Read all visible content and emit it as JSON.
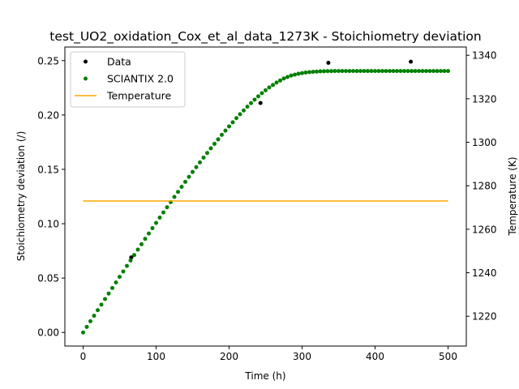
{
  "chart_data": {
    "type": "scatter",
    "title": "test_UO2_oxidation_Cox_et_al_data_1273K - Stoichiometry deviation",
    "xlabel": "Time (h)",
    "ylabel": "Stoichiometry deviation (/)",
    "y2label": "Temperature (K)",
    "xlim": [
      -25,
      525
    ],
    "ylim": [
      -0.0125,
      0.2625
    ],
    "y2lim": [
      1206.3,
      1343.8
    ],
    "xticks": [
      0,
      100,
      200,
      300,
      400,
      500
    ],
    "xtick_labels": [
      "0",
      "100",
      "200",
      "300",
      "400",
      "500"
    ],
    "yticks": [
      0.0,
      0.05,
      0.1,
      0.15,
      0.2,
      0.25
    ],
    "ytick_labels": [
      "0.00",
      "0.05",
      "0.10",
      "0.15",
      "0.20",
      "0.25"
    ],
    "y2ticks": [
      1220,
      1240,
      1260,
      1280,
      1300,
      1320,
      1340
    ],
    "y2tick_labels": [
      "1220",
      "1240",
      "1260",
      "1280",
      "1300",
      "1320",
      "1340"
    ],
    "legend_position": "top-left",
    "grid": false,
    "series": [
      {
        "name": "Data",
        "color": "#000000",
        "marker": "dot",
        "axis": "left",
        "x": [
          66,
          243,
          336,
          449
        ],
        "y": [
          0.069,
          0.211,
          0.248,
          0.249
        ]
      },
      {
        "name": "SCIANTIX 2.0",
        "color": "#008000",
        "marker": "dot",
        "axis": "left",
        "x": [
          0,
          5,
          10,
          15,
          20,
          25,
          30,
          35,
          40,
          45,
          50,
          55,
          60,
          65,
          70,
          75,
          80,
          85,
          90,
          95,
          100,
          105,
          110,
          115,
          120,
          125,
          130,
          135,
          140,
          145,
          150,
          155,
          160,
          165,
          170,
          175,
          180,
          185,
          190,
          195,
          200,
          205,
          210,
          215,
          220,
          225,
          230,
          235,
          240,
          245,
          250,
          255,
          260,
          265,
          270,
          275,
          280,
          285,
          290,
          295,
          300,
          305,
          310,
          315,
          320,
          325,
          330,
          335,
          340,
          345,
          350,
          355,
          360,
          365,
          370,
          375,
          380,
          385,
          390,
          395,
          400,
          405,
          410,
          415,
          420,
          425,
          430,
          435,
          440,
          445,
          450,
          455,
          460,
          465,
          470,
          475,
          480,
          485,
          490,
          495,
          500
        ],
        "y": [
          0,
          0.0051,
          0.0103,
          0.0154,
          0.0205,
          0.0256,
          0.0307,
          0.0358,
          0.0409,
          0.046,
          0.0511,
          0.0561,
          0.0612,
          0.0662,
          0.0712,
          0.0762,
          0.0811,
          0.0861,
          0.091,
          0.0959,
          0.1007,
          0.1056,
          0.1104,
          0.1151,
          0.1199,
          0.1246,
          0.1293,
          0.1339,
          0.1385,
          0.1431,
          0.1476,
          0.152,
          0.1564,
          0.1608,
          0.1651,
          0.1693,
          0.1735,
          0.1776,
          0.1817,
          0.1856,
          0.1895,
          0.1933,
          0.1971,
          0.2007,
          0.2042,
          0.2076,
          0.2109,
          0.2141,
          0.2171,
          0.22,
          0.2227,
          0.2253,
          0.2276,
          0.2298,
          0.2317,
          0.2335,
          0.2349,
          0.2362,
          0.2371,
          0.2379,
          0.2385,
          0.239,
          0.2394,
          0.2397,
          0.2399,
          0.2401,
          0.2402,
          0.2403,
          0.2403,
          0.2404,
          0.2404,
          0.2404,
          0.2404,
          0.2404,
          0.2404,
          0.2404,
          0.2404,
          0.2404,
          0.2404,
          0.2404,
          0.2404,
          0.2404,
          0.2404,
          0.2404,
          0.2404,
          0.2404,
          0.2404,
          0.2404,
          0.2404,
          0.2404,
          0.2404,
          0.2404,
          0.2404,
          0.2404,
          0.2404,
          0.2404,
          0.2404,
          0.2404,
          0.2404,
          0.2404,
          0.2404
        ]
      },
      {
        "name": "Temperature",
        "color": "#ffa500",
        "marker": "line",
        "axis": "right",
        "x": [
          0,
          500
        ],
        "y": [
          1273,
          1273
        ]
      }
    ]
  }
}
